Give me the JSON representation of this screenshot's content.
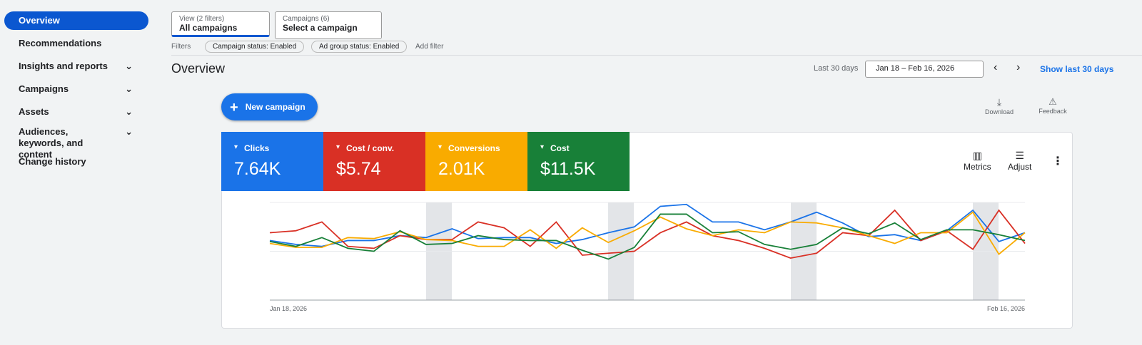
{
  "sidebar": {
    "items": [
      "Overview",
      "Recommendations",
      "Insights and reports",
      "Campaigns",
      "Assets",
      "Audiences, keywords, and content",
      "Change history"
    ]
  },
  "filters": {
    "view_label": "View (2 filters)",
    "view_value": "All campaigns",
    "campaigns_label": "Campaigns (6)",
    "campaigns_value": "Select a campaign",
    "filters_label": "Filters",
    "chips": [
      "Campaign status: Enabled",
      "Ad group status: Enabled"
    ],
    "add_filter": "Add filter"
  },
  "header": {
    "title": "Overview",
    "range_label": "Last 30 days",
    "date_range": "Jan 18 – Feb 16, 2026",
    "show_last": "Show last 30 days"
  },
  "actions": {
    "new_campaign": "New campaign",
    "download": "Download",
    "feedback": "Feedback"
  },
  "scorecards": [
    {
      "name": "Clicks",
      "value": "7.64K",
      "color": "#1a73e8"
    },
    {
      "name": "Cost / conv.",
      "value": "$5.74",
      "color": "#d93025"
    },
    {
      "name": "Conversions",
      "value": "2.01K",
      "color": "#f9ab00"
    },
    {
      "name": "Cost",
      "value": "$11.5K",
      "color": "#188038"
    }
  ],
  "chart_tools": {
    "metrics": "Metrics",
    "adjust": "Adjust"
  },
  "chart_data": {
    "type": "line",
    "categories": [
      "Jan 18, 2026",
      null,
      null,
      null,
      null,
      null,
      null,
      null,
      null,
      null,
      null,
      null,
      null,
      null,
      null,
      null,
      null,
      null,
      null,
      null,
      null,
      null,
      null,
      null,
      null,
      null,
      null,
      null,
      null,
      "Feb 16, 2026"
    ],
    "ylim": [
      0,
      100
    ],
    "yticks": [
      0,
      50,
      100
    ],
    "series": [
      {
        "color": "#1a73e8",
        "values": [
          61,
          57,
          55,
          61,
          61,
          66,
          64,
          73,
          63,
          64,
          64,
          58,
          62,
          69,
          75,
          96,
          98,
          80,
          80,
          72,
          80,
          90,
          79,
          65,
          67,
          61,
          71,
          92,
          60,
          69
        ]
      },
      {
        "color": "#d93025",
        "values": [
          69,
          71,
          80,
          55,
          53,
          66,
          62,
          62,
          80,
          74,
          55,
          80,
          46,
          48,
          50,
          69,
          80,
          66,
          61,
          53,
          43,
          48,
          69,
          66,
          92,
          61,
          71,
          52,
          92,
          58
        ]
      },
      {
        "color": "#f9ab00",
        "values": [
          58,
          54,
          54,
          64,
          63,
          70,
          62,
          61,
          55,
          55,
          72,
          53,
          74,
          59,
          71,
          85,
          73,
          66,
          72,
          69,
          80,
          79,
          74,
          66,
          58,
          69,
          69,
          90,
          47,
          69
        ]
      },
      {
        "color": "#188038",
        "values": [
          60,
          55,
          64,
          53,
          50,
          71,
          57,
          58,
          66,
          62,
          61,
          61,
          51,
          42,
          54,
          88,
          88,
          69,
          70,
          57,
          52,
          57,
          74,
          68,
          79,
          62,
          72,
          72,
          67,
          61
        ]
      }
    ]
  }
}
